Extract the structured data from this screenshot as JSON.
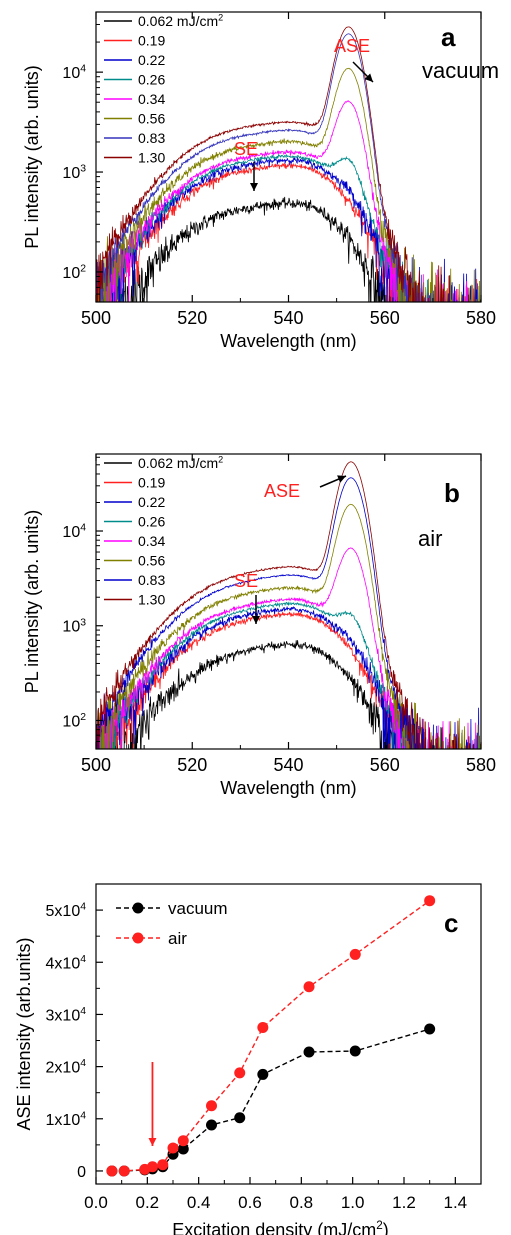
{
  "chart_data": [
    {
      "type": "line",
      "panel_label": "a",
      "condition": "vacuum",
      "xlabel": "Wavelength (nm)",
      "ylabel": "PL intensity (arb. units)",
      "xlim": [
        500,
        580
      ],
      "ylim": [
        50,
        40000
      ],
      "yscale": "log",
      "xticks": [
        "500",
        "520",
        "540",
        "560",
        "580"
      ],
      "yticks": [
        {
          "value": 100,
          "base": "10",
          "exp": "2"
        },
        {
          "value": 1000,
          "base": "10",
          "exp": "3"
        },
        {
          "value": 10000,
          "base": "10",
          "exp": "4"
        }
      ],
      "legend_first_label": "0.062 mJ/cm",
      "legend_first_sup": "2",
      "legend_labels_rest": [
        "0.19",
        "0.22",
        "0.26",
        "0.34",
        "0.56",
        "0.83",
        "1.30"
      ],
      "legend_position": "top-left",
      "annotations": {
        "se": "SE",
        "ase": "ASE"
      },
      "se_peak_nm": 531,
      "ase_peak_nm": 552.5,
      "ase_width_nm": 2.2,
      "series": [
        {
          "name": "0.062 mJ/cm2",
          "color": "#000000",
          "se_peak": 400,
          "ase_peak": 0
        },
        {
          "name": "0.19",
          "color": "#ff2020",
          "se_peak": 950,
          "ase_peak": 0
        },
        {
          "name": "0.22",
          "color": "#0000cc",
          "se_peak": 1080,
          "ase_peak": 90
        },
        {
          "name": "0.26",
          "color": "#008b8b",
          "se_peak": 1180,
          "ase_peak": 700
        },
        {
          "name": "0.34",
          "color": "#ff00ff",
          "se_peak": 1300,
          "ase_peak": 4400
        },
        {
          "name": "0.56",
          "color": "#808000",
          "se_peak": 1650,
          "ase_peak": 10000
        },
        {
          "name": "0.83",
          "color": "#3333bb",
          "se_peak": 2150,
          "ase_peak": 23000
        },
        {
          "name": "1.30",
          "color": "#8b0000",
          "se_peak": 2600,
          "ase_peak": 27000
        }
      ]
    },
    {
      "type": "line",
      "panel_label": "b",
      "condition": "air",
      "xlabel": "Wavelength (nm)",
      "ylabel": "PL intensity (arb. units)",
      "xlim": [
        500,
        580
      ],
      "ylim": [
        50,
        65000
      ],
      "yscale": "log",
      "xticks": [
        "500",
        "520",
        "540",
        "560",
        "580"
      ],
      "yticks": [
        {
          "value": 100,
          "base": "10",
          "exp": "2"
        },
        {
          "value": 1000,
          "base": "10",
          "exp": "3"
        },
        {
          "value": 10000,
          "base": "10",
          "exp": "4"
        }
      ],
      "legend_first_label": "0.062 mJ/cm",
      "legend_first_sup": "2",
      "legend_labels_rest": [
        "0.19",
        "0.22",
        "0.26",
        "0.34",
        "0.56",
        "0.83",
        "1.30"
      ],
      "legend_position": "top-left",
      "annotations": {
        "se": "SE",
        "ase": "ASE"
      },
      "se_peak_nm": 532,
      "ase_peak_nm": 553,
      "ase_width_nm": 2.2,
      "series": [
        {
          "name": "0.062 mJ/cm2",
          "color": "#000000",
          "se_peak": 500,
          "ase_peak": 0
        },
        {
          "name": "0.19",
          "color": "#ff2020",
          "se_peak": 1050,
          "ase_peak": 0
        },
        {
          "name": "0.22",
          "color": "#0000cc",
          "se_peak": 1180,
          "ase_peak": 80
        },
        {
          "name": "0.26",
          "color": "#008b8b",
          "se_peak": 1350,
          "ase_peak": 600
        },
        {
          "name": "0.34",
          "color": "#ff00ff",
          "se_peak": 1500,
          "ase_peak": 5800
        },
        {
          "name": "0.56",
          "color": "#808000",
          "se_peak": 2000,
          "ase_peak": 18000
        },
        {
          "name": "0.83",
          "color": "#0000cc",
          "se_peak": 2700,
          "ase_peak": 35000
        },
        {
          "name": "1.30",
          "color": "#8b0000",
          "se_peak": 3300,
          "ase_peak": 52000
        }
      ]
    },
    {
      "type": "scatter",
      "panel_label": "c",
      "xlabel": "Excitation density (mJ/cm",
      "xlabel_sup": "2",
      "xlabel_tail": ")",
      "ylabel": "ASE intensity (arb.units)",
      "xlim": [
        0.0,
        1.5
      ],
      "ylim": [
        -2500,
        55000
      ],
      "xticks": [
        "0.0",
        "0.2",
        "0.4",
        "0.6",
        "0.8",
        "1.0",
        "1.2",
        "1.4"
      ],
      "yticks": [
        {
          "value": 0,
          "label": "0"
        },
        {
          "value": 10000,
          "label": "1x10",
          "exp": "4"
        },
        {
          "value": 20000,
          "label": "2x10",
          "exp": "4"
        },
        {
          "value": 30000,
          "label": "3x10",
          "exp": "4"
        },
        {
          "value": 40000,
          "label": "4x10",
          "exp": "4"
        },
        {
          "value": 50000,
          "label": "5x10",
          "exp": "4"
        }
      ],
      "legend_position": "top-left",
      "arrow_x": 0.22,
      "series": [
        {
          "name": "vacuum",
          "color": "#000000",
          "x": [
            0.062,
            0.11,
            0.19,
            0.22,
            0.26,
            0.3,
            0.34,
            0.45,
            0.56,
            0.65,
            0.83,
            1.01,
            1.3
          ],
          "y": [
            0,
            0,
            200,
            400,
            800,
            3200,
            4200,
            8800,
            10200,
            18500,
            22800,
            23000,
            27200
          ]
        },
        {
          "name": "air",
          "color": "#ff2020",
          "x": [
            0.062,
            0.11,
            0.19,
            0.22,
            0.26,
            0.3,
            0.34,
            0.45,
            0.56,
            0.65,
            0.83,
            1.01,
            1.3
          ],
          "y": [
            0,
            0,
            300,
            800,
            1200,
            4400,
            5800,
            12500,
            18800,
            27500,
            35300,
            41500,
            51800
          ]
        }
      ]
    }
  ]
}
